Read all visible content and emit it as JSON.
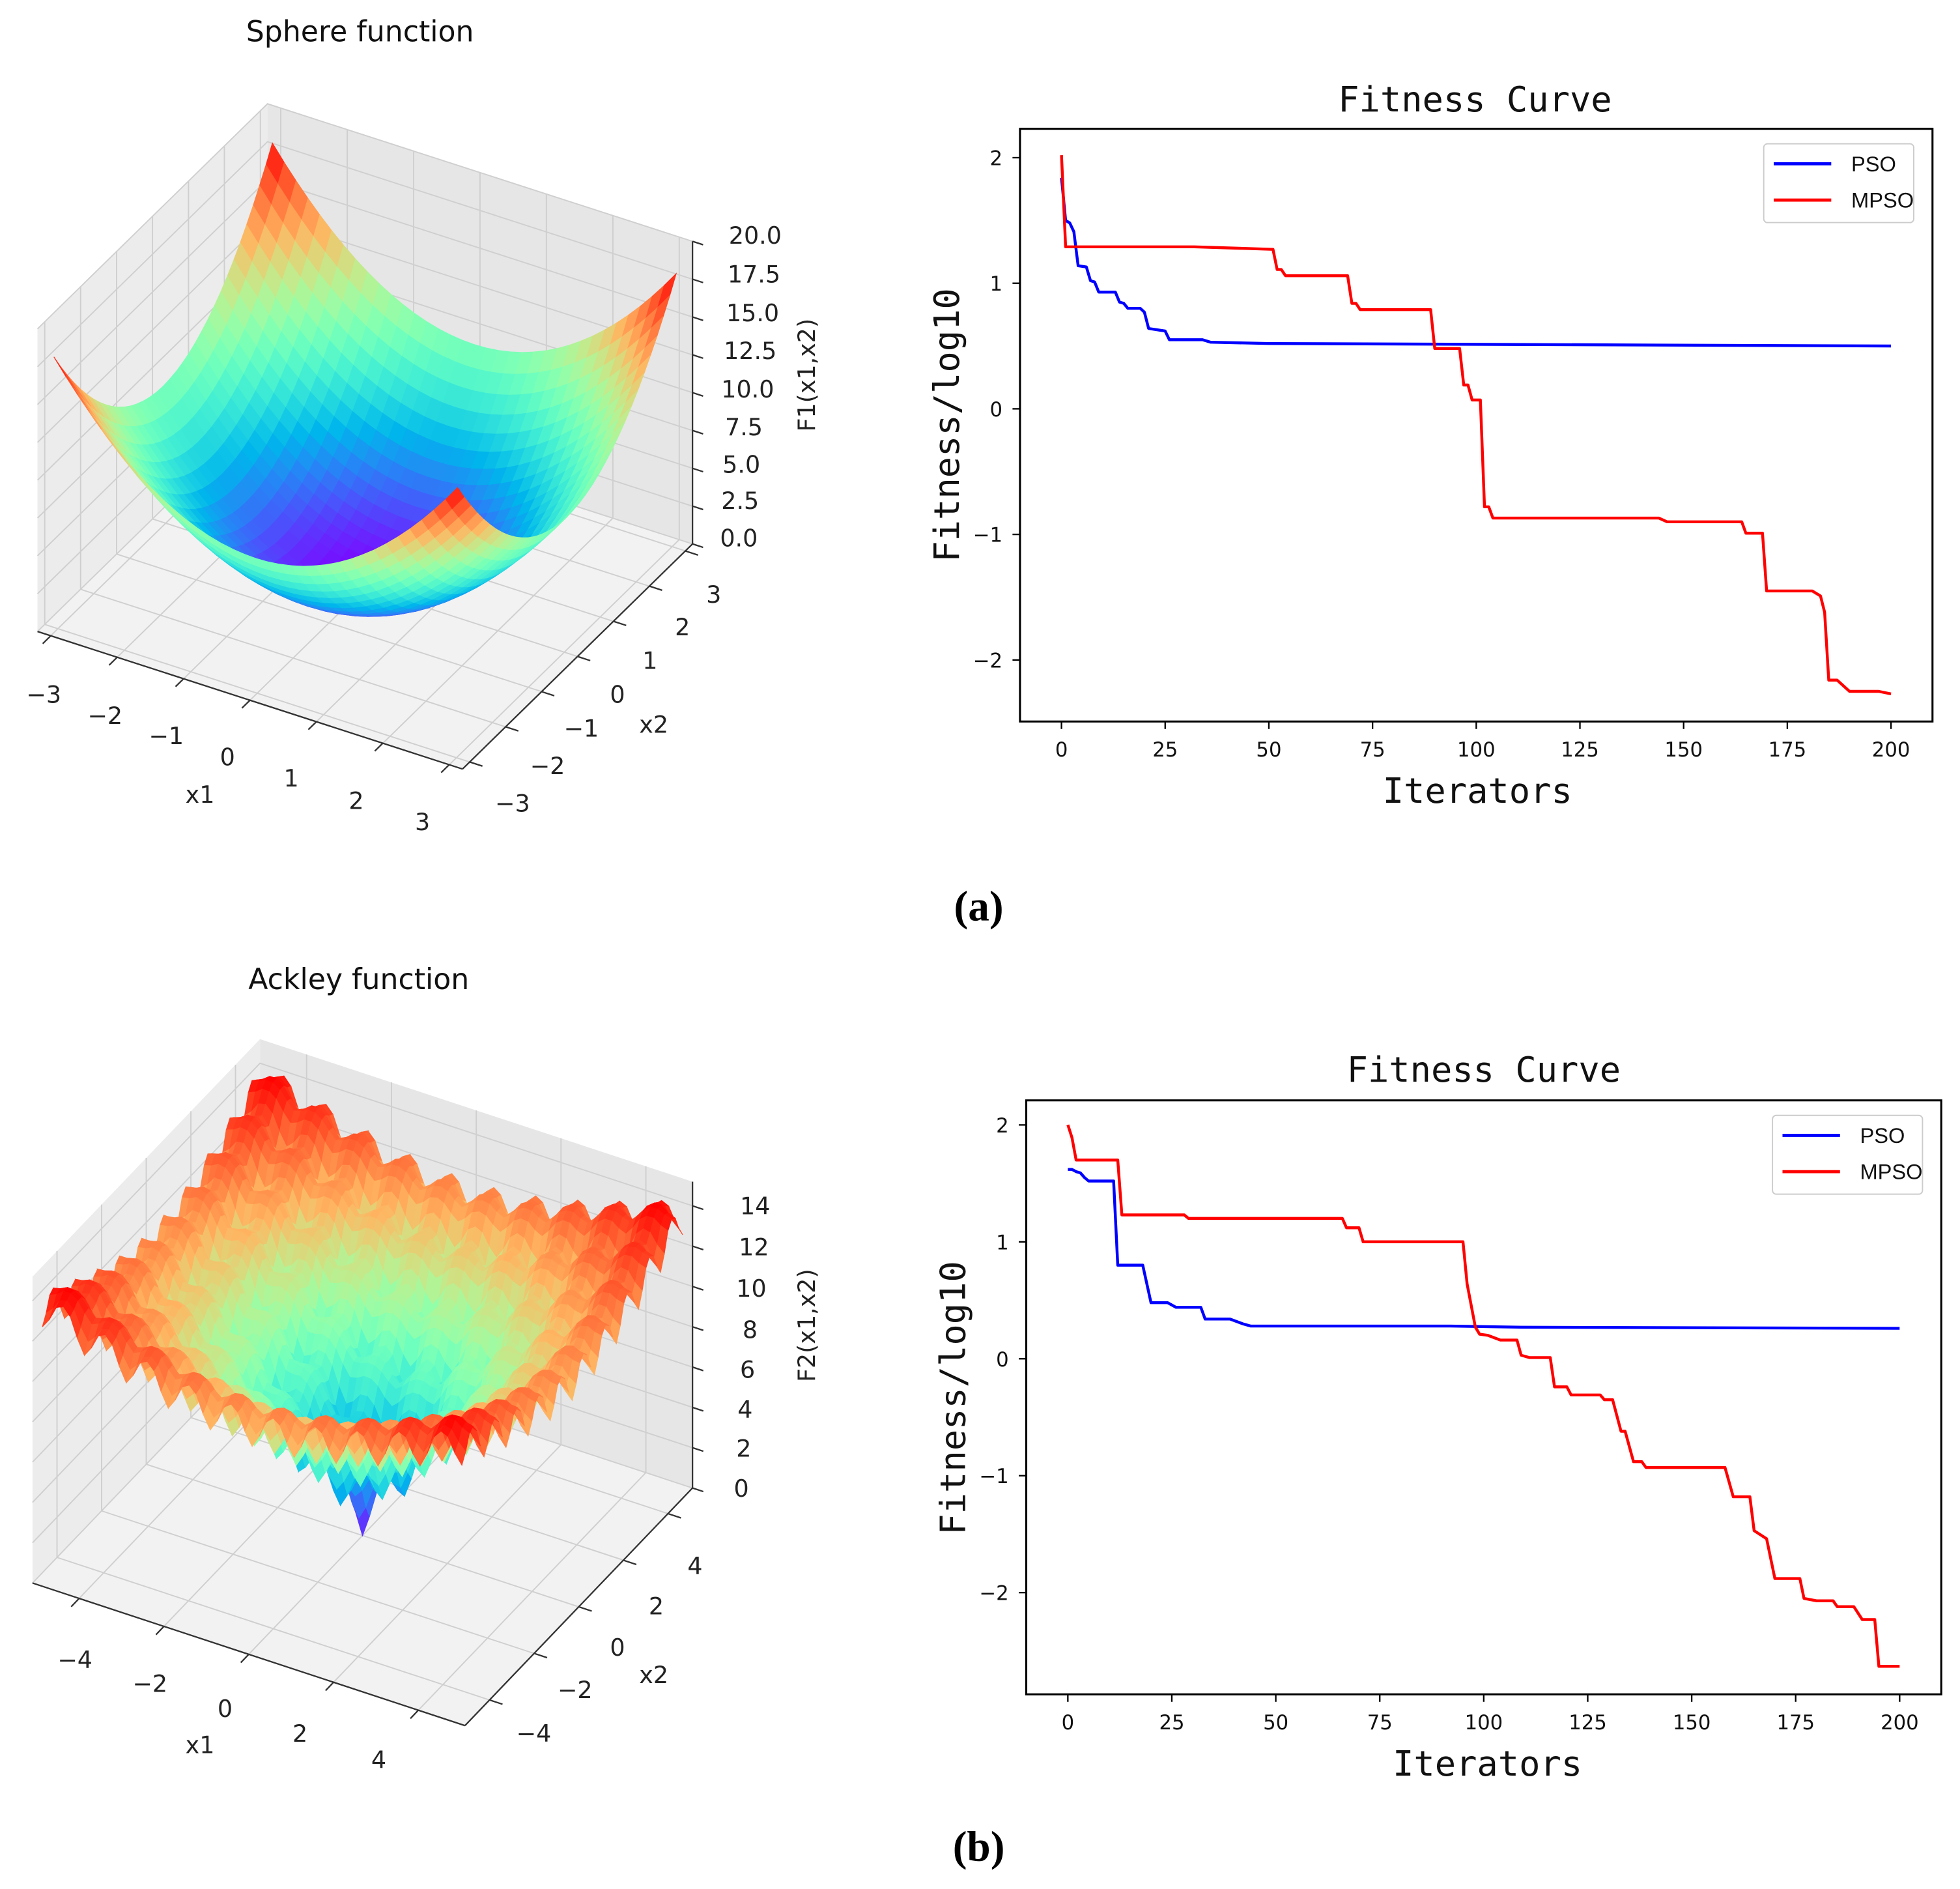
{
  "panel_a": {
    "caption": "(a)"
  },
  "panel_b": {
    "caption": "(b)"
  },
  "chart_data": [
    {
      "type": "surface",
      "title": "Sphere function",
      "function": "sphere",
      "xlabel": "x1",
      "ylabel": "x2",
      "zlabel": "F1(x1,x2)",
      "xlim": [
        -3,
        3
      ],
      "ylim": [
        -3,
        3
      ],
      "zlim": [
        0,
        20
      ],
      "xticks": [
        "−3",
        "−2",
        "−1",
        "0",
        "1",
        "2",
        "3"
      ],
      "yticks": [
        "3",
        "2",
        "1",
        "0",
        "−1",
        "−2",
        "−3"
      ],
      "zticks": [
        "20.0",
        "17.5",
        "15.0",
        "12.5",
        "10.0",
        "7.5",
        "5.0",
        "2.5",
        "0.0"
      ],
      "colormap": "rainbow"
    },
    {
      "type": "line",
      "title": "Fitness Curve",
      "xlabel": "Iterators",
      "ylabel": "Fitness/log10",
      "xlim": [
        -10,
        210
      ],
      "ylim": [
        -2.49,
        2.23
      ],
      "xticks": [
        "0",
        "25",
        "50",
        "75",
        "100",
        "125",
        "150",
        "175",
        "200"
      ],
      "yticks": [
        "2",
        "1",
        "0",
        "−1",
        "−2"
      ],
      "legend_position": "top-right",
      "series": [
        {
          "name": "PSO",
          "color": "#0000ff",
          "points": [
            [
              0,
              1.84
            ],
            [
              1,
              1.5
            ],
            [
              2,
              1.48
            ],
            [
              3,
              1.41
            ],
            [
              4,
              1.14
            ],
            [
              6,
              1.13
            ],
            [
              7,
              1.02
            ],
            [
              8,
              1.01
            ],
            [
              9,
              0.93
            ],
            [
              13,
              0.93
            ],
            [
              14,
              0.85
            ],
            [
              15,
              0.84
            ],
            [
              16,
              0.8
            ],
            [
              19,
              0.8
            ],
            [
              20,
              0.77
            ],
            [
              21,
              0.64
            ],
            [
              25,
              0.62
            ],
            [
              26,
              0.55
            ],
            [
              34,
              0.55
            ],
            [
              36,
              0.53
            ],
            [
              50,
              0.52
            ],
            [
              200,
              0.5
            ]
          ]
        },
        {
          "name": "MPSO",
          "color": "#ff0000",
          "points": [
            [
              0,
              2.02
            ],
            [
              1,
              1.29
            ],
            [
              32,
              1.29
            ],
            [
              51,
              1.27
            ],
            [
              52,
              1.11
            ],
            [
              53,
              1.11
            ],
            [
              54,
              1.06
            ],
            [
              69,
              1.06
            ],
            [
              70,
              0.84
            ],
            [
              71,
              0.84
            ],
            [
              72,
              0.79
            ],
            [
              89,
              0.79
            ],
            [
              90,
              0.48
            ],
            [
              96,
              0.48
            ],
            [
              97,
              0.19
            ],
            [
              98,
              0.19
            ],
            [
              99,
              0.07
            ],
            [
              101,
              0.07
            ],
            [
              102,
              -0.78
            ],
            [
              103,
              -0.78
            ],
            [
              104,
              -0.87
            ],
            [
              144,
              -0.87
            ],
            [
              146,
              -0.9
            ],
            [
              164,
              -0.9
            ],
            [
              165,
              -0.99
            ],
            [
              169,
              -0.99
            ],
            [
              170,
              -1.45
            ],
            [
              181,
              -1.45
            ],
            [
              183,
              -1.49
            ],
            [
              184,
              -1.62
            ],
            [
              185,
              -2.16
            ],
            [
              187,
              -2.16
            ],
            [
              188,
              -2.19
            ],
            [
              190,
              -2.25
            ],
            [
              197,
              -2.25
            ],
            [
              200,
              -2.27
            ]
          ]
        }
      ]
    },
    {
      "type": "surface",
      "title": "Ackley function",
      "function": "ackley",
      "xlabel": "x1",
      "ylabel": "x2",
      "zlabel": "F2(x1,x2)",
      "xlim": [
        -5,
        5
      ],
      "ylim": [
        -5,
        5
      ],
      "zlim": [
        0,
        15
      ],
      "xticks": [
        "−4",
        "−2",
        "0",
        "2",
        "4"
      ],
      "yticks": [
        "4",
        "2",
        "0",
        "−2",
        "−4"
      ],
      "zticks": [
        "14",
        "12",
        "10",
        "8",
        "6",
        "4",
        "2",
        "0"
      ],
      "colormap": "rainbow"
    },
    {
      "type": "line",
      "title": "Fitness Curve",
      "xlabel": "Iterators",
      "ylabel": "Fitness/log10",
      "xlim": [
        -10,
        210
      ],
      "ylim": [
        -2.87,
        2.21
      ],
      "xticks": [
        "0",
        "25",
        "50",
        "75",
        "100",
        "125",
        "150",
        "175",
        "200"
      ],
      "yticks": [
        "2",
        "1",
        "0",
        "−1",
        "−2"
      ],
      "legend_position": "top-right",
      "series": [
        {
          "name": "PSO",
          "color": "#0000ff",
          "points": [
            [
              0,
              1.62
            ],
            [
              1,
              1.62
            ],
            [
              2,
              1.6
            ],
            [
              3,
              1.59
            ],
            [
              4,
              1.55
            ],
            [
              5,
              1.52
            ],
            [
              11,
              1.52
            ],
            [
              12,
              0.8
            ],
            [
              18,
              0.8
            ],
            [
              20,
              0.48
            ],
            [
              24,
              0.48
            ],
            [
              26,
              0.44
            ],
            [
              32,
              0.44
            ],
            [
              33,
              0.34
            ],
            [
              39,
              0.34
            ],
            [
              42,
              0.3
            ],
            [
              44,
              0.28
            ],
            [
              49,
              0.28
            ],
            [
              92,
              0.28
            ],
            [
              109,
              0.27
            ],
            [
              200,
              0.26
            ]
          ]
        },
        {
          "name": "MPSO",
          "color": "#ff0000",
          "points": [
            [
              0,
              2.0
            ],
            [
              1,
              1.89
            ],
            [
              2,
              1.7
            ],
            [
              12,
              1.7
            ],
            [
              13,
              1.23
            ],
            [
              28,
              1.23
            ],
            [
              29,
              1.2
            ],
            [
              66,
              1.2
            ],
            [
              67,
              1.12
            ],
            [
              70,
              1.12
            ],
            [
              71,
              1.0
            ],
            [
              95,
              1.0
            ],
            [
              96,
              0.64
            ],
            [
              98,
              0.27
            ],
            [
              99,
              0.21
            ],
            [
              101,
              0.2
            ],
            [
              104,
              0.16
            ],
            [
              108,
              0.16
            ],
            [
              109,
              0.03
            ],
            [
              111,
              0.01
            ],
            [
              116,
              0.01
            ],
            [
              117,
              -0.24
            ],
            [
              120,
              -0.24
            ],
            [
              121,
              -0.31
            ],
            [
              128,
              -0.31
            ],
            [
              129,
              -0.35
            ],
            [
              131,
              -0.35
            ],
            [
              133,
              -0.62
            ],
            [
              134,
              -0.62
            ],
            [
              136,
              -0.88
            ],
            [
              138,
              -0.88
            ],
            [
              139,
              -0.93
            ],
            [
              158,
              -0.93
            ],
            [
              160,
              -1.18
            ],
            [
              164,
              -1.18
            ],
            [
              165,
              -1.47
            ],
            [
              168,
              -1.54
            ],
            [
              169,
              -1.71
            ],
            [
              170,
              -1.88
            ],
            [
              176,
              -1.88
            ],
            [
              177,
              -2.05
            ],
            [
              180,
              -2.07
            ],
            [
              184,
              -2.07
            ],
            [
              185,
              -2.12
            ],
            [
              189,
              -2.12
            ],
            [
              191,
              -2.23
            ],
            [
              194,
              -2.23
            ],
            [
              195,
              -2.63
            ],
            [
              200,
              -2.63
            ]
          ]
        }
      ]
    }
  ]
}
